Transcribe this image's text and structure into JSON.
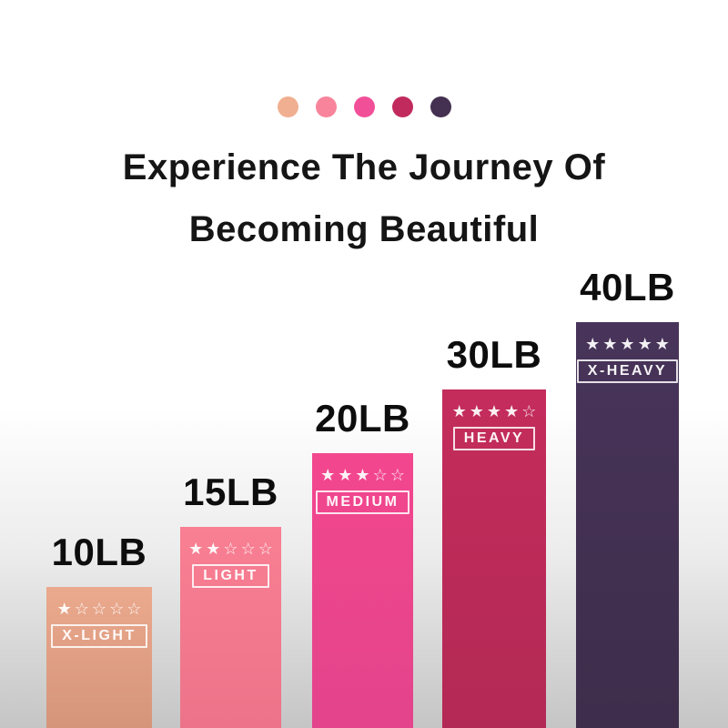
{
  "title": {
    "line1": "Experience The Journey Of",
    "line2": "Becoming Beautiful",
    "color": "#151515"
  },
  "palette_dots": [
    {
      "name": "x-light",
      "color": "#F0AF90"
    },
    {
      "name": "light",
      "color": "#F8849B"
    },
    {
      "name": "medium",
      "color": "#F24F99"
    },
    {
      "name": "heavy",
      "color": "#C12A5D"
    },
    {
      "name": "x-heavy",
      "color": "#443050"
    }
  ],
  "chart_data": {
    "type": "bar",
    "title": "Experience The Journey Of Becoming Beautiful",
    "categories": [
      "X-LIGHT",
      "LIGHT",
      "MEDIUM",
      "HEAVY",
      "X-HEAVY"
    ],
    "values": [
      10,
      15,
      20,
      30,
      40
    ],
    "unit": "LB",
    "value_labels": [
      "10LB",
      "15LB",
      "20LB",
      "30LB",
      "40LB"
    ],
    "star_ratings": [
      1,
      2,
      3,
      4,
      5
    ],
    "max_stars": 5,
    "bar_colors": [
      "#E9A68A",
      "#F97F93",
      "#F3478E",
      "#C42C5C",
      "#48345A"
    ],
    "xlabel": "",
    "ylabel": "",
    "ylim": [
      0,
      40
    ],
    "grid": false,
    "legend": false
  },
  "bands": [
    {
      "weight_label": "10LB",
      "level": "X-LIGHT",
      "stars_filled": 1,
      "stars_total": 5,
      "color_top": "#EBA98D",
      "color_bottom": "#D5957B"
    },
    {
      "weight_label": "15LB",
      "level": "LIGHT",
      "stars_filled": 2,
      "stars_total": 5,
      "color_top": "#F97F93",
      "color_bottom": "#EC7389"
    },
    {
      "weight_label": "20LB",
      "level": "MEDIUM",
      "stars_filled": 3,
      "stars_total": 5,
      "color_top": "#F3478E",
      "color_bottom": "#E3448B"
    },
    {
      "weight_label": "30LB",
      "level": "HEAVY",
      "stars_filled": 4,
      "stars_total": 5,
      "color_top": "#C42C5C",
      "color_bottom": "#B32955"
    },
    {
      "weight_label": "40LB",
      "level": "X-HEAVY",
      "stars_filled": 5,
      "stars_total": 5,
      "color_top": "#48345A",
      "color_bottom": "#3E2D4B"
    }
  ],
  "glyphs": {
    "star_filled": "★",
    "star_empty": "☆"
  }
}
